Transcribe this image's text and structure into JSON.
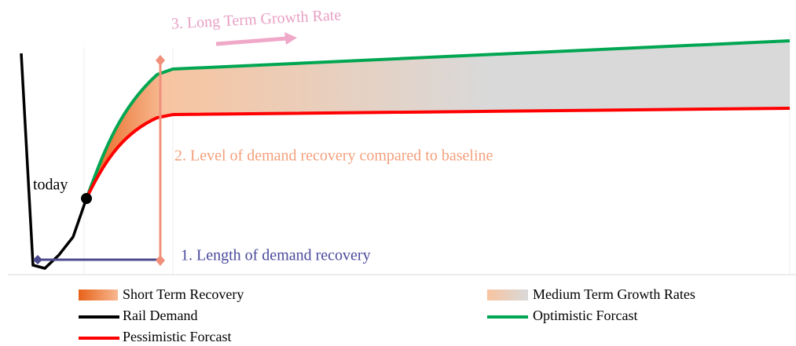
{
  "annotations": {
    "today": "today",
    "length": "1. Length of demand recovery",
    "level": "2. Level of demand recovery compared to baseline",
    "growth": "3. Long Term Growth Rate"
  },
  "legend": [
    "Short Term Recovery",
    "Medium Term Growth Rates",
    "Rail Demand",
    "Optimistic Forcast",
    "Pessimistic Forcast"
  ]
}
